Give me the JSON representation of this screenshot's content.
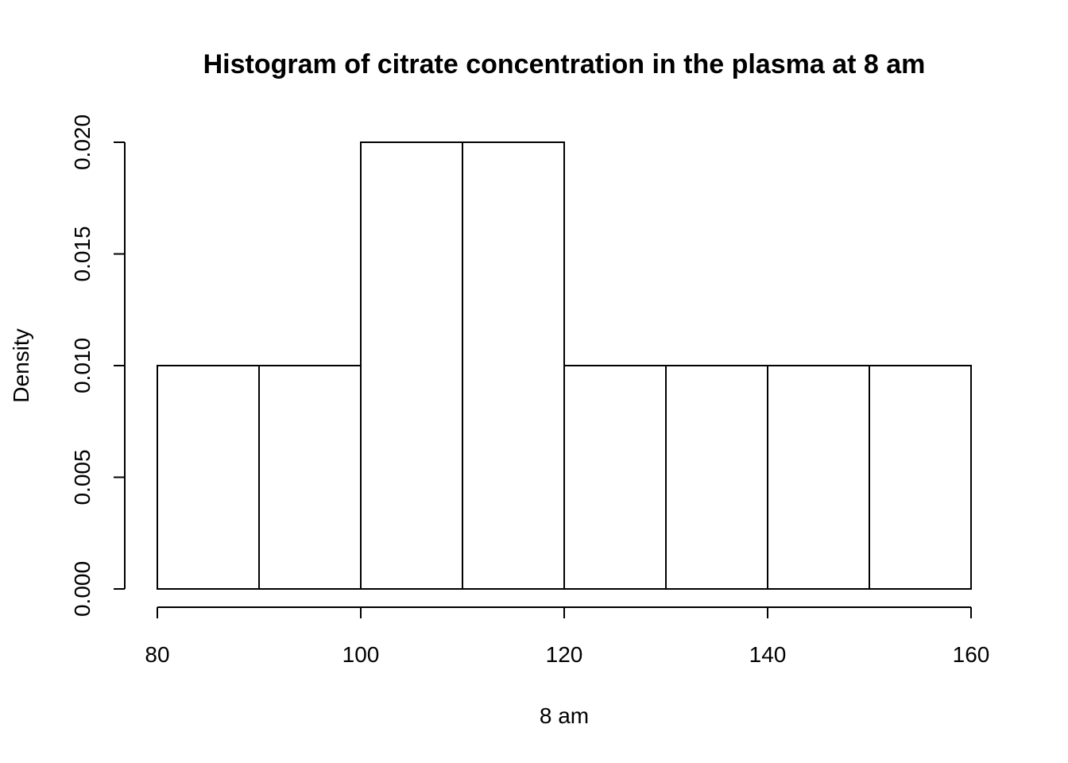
{
  "chart_data": {
    "type": "bar",
    "title": "Histogram of citrate concentration in the plasma at 8 am",
    "xlabel": "8 am",
    "ylabel": "Density",
    "bins": [
      {
        "from": 80,
        "to": 90,
        "density": 0.01
      },
      {
        "from": 90,
        "to": 100,
        "density": 0.01
      },
      {
        "from": 100,
        "to": 110,
        "density": 0.02
      },
      {
        "from": 110,
        "to": 120,
        "density": 0.02
      },
      {
        "from": 120,
        "to": 130,
        "density": 0.01
      },
      {
        "from": 130,
        "to": 140,
        "density": 0.01
      },
      {
        "from": 140,
        "to": 150,
        "density": 0.01
      },
      {
        "from": 150,
        "to": 160,
        "density": 0.01
      }
    ],
    "xlim": [
      80,
      160
    ],
    "ylim": [
      0,
      0.02
    ],
    "x_ticks": [
      "80",
      "100",
      "120",
      "140",
      "160"
    ],
    "y_ticks": [
      "0.000",
      "0.005",
      "0.010",
      "0.015",
      "0.020"
    ],
    "grid": false,
    "bar_fill": "#ffffff",
    "bar_edge": "#000000"
  }
}
